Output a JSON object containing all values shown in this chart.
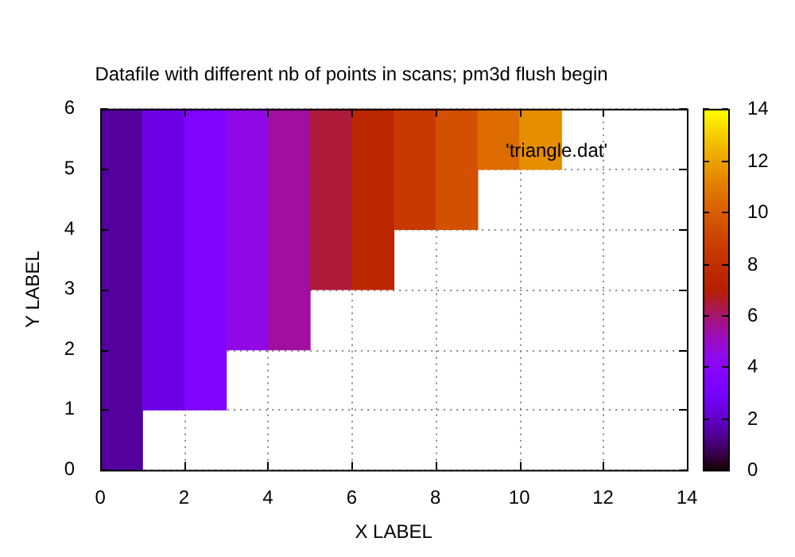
{
  "chart_data": {
    "type": "heatmap",
    "title": "Datafile with different nb of points in scans; pm3d flush begin",
    "xlabel": "X LABEL",
    "ylabel": "Y LABEL",
    "annotations": [
      "'triangle.dat'"
    ],
    "cells": [
      [
        1.5,
        2.5,
        3.5,
        4.5,
        5.5,
        6.5,
        7.5,
        8.5,
        9.5,
        10.5,
        11.5,
        null,
        null,
        null
      ],
      [
        1.5,
        2.5,
        3.5,
        4.5,
        5.5,
        6.5,
        7.5,
        8.5,
        9.5,
        null,
        null,
        null,
        null,
        null
      ],
      [
        1.5,
        2.5,
        3.5,
        4.5,
        5.5,
        6.5,
        7.5,
        null,
        null,
        null,
        null,
        null,
        null,
        null
      ],
      [
        1.5,
        2.5,
        3.5,
        4.5,
        5.5,
        null,
        null,
        null,
        null,
        null,
        null,
        null,
        null,
        null
      ],
      [
        1.5,
        2.5,
        3.5,
        null,
        null,
        null,
        null,
        null,
        null,
        null,
        null,
        null,
        null,
        null
      ],
      [
        1.5,
        null,
        null,
        null,
        null,
        null,
        null,
        null,
        null,
        null,
        null,
        null,
        null,
        null
      ]
    ],
    "xlim": [
      0,
      14
    ],
    "xticks": [
      0,
      2,
      4,
      6,
      8,
      10,
      12,
      14
    ],
    "ylim": [
      0,
      6
    ],
    "yticks": [
      0,
      1,
      2,
      3,
      4,
      5,
      6
    ],
    "clim": [
      0,
      14
    ],
    "cticks": [
      0,
      2,
      4,
      6,
      8,
      10,
      12,
      14
    ],
    "grid": true
  }
}
